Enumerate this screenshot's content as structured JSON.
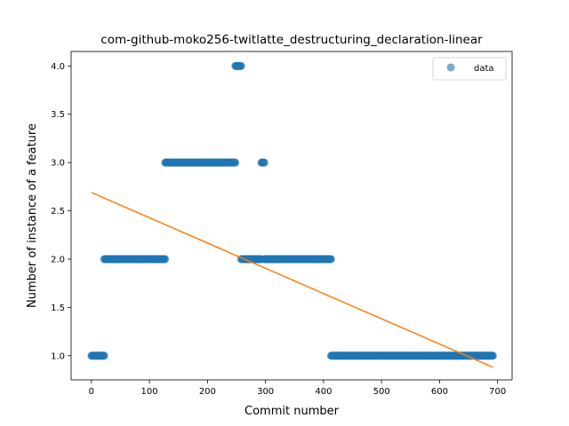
{
  "chart_data": {
    "type": "scatter",
    "title": "com-github-moko256-twitlatte_destructuring_declaration-linear",
    "xlabel": "Commit number",
    "ylabel": "Number of instance of a feature",
    "xlim": [
      -35,
      725
    ],
    "ylim": [
      0.75,
      4.15
    ],
    "xticks": [
      0,
      100,
      200,
      300,
      400,
      500,
      600,
      700
    ],
    "yticks": [
      1.0,
      1.5,
      2.0,
      2.5,
      3.0,
      3.5,
      4.0
    ],
    "xtick_labels": [
      "0",
      "100",
      "200",
      "300",
      "400",
      "500",
      "600",
      "700"
    ],
    "ytick_labels": [
      "1.0",
      "1.5",
      "2.0",
      "2.5",
      "3.0",
      "3.5",
      "4.0"
    ],
    "grid": false,
    "legend_position": "top-right",
    "series": [
      {
        "name": "data",
        "kind": "scatter",
        "color": "#1f77b4",
        "alpha": 0.6,
        "segments": [
          {
            "x_start": 0,
            "x_end": 22,
            "y": 1.0
          },
          {
            "x_start": 22,
            "x_end": 127,
            "y": 2.0
          },
          {
            "x_start": 127,
            "x_end": 248,
            "y": 3.0
          },
          {
            "x_start": 248,
            "x_end": 258,
            "y": 4.0
          },
          {
            "x_start": 258,
            "x_end": 293,
            "y": 2.0
          },
          {
            "x_start": 293,
            "x_end": 298,
            "y": 3.0
          },
          {
            "x_start": 298,
            "x_end": 413,
            "y": 2.0
          },
          {
            "x_start": 413,
            "x_end": 692,
            "y": 1.0
          }
        ]
      },
      {
        "kind": "line",
        "color": "#ff7f0e",
        "x": [
          0,
          692
        ],
        "y": [
          2.69,
          0.88
        ]
      }
    ]
  }
}
